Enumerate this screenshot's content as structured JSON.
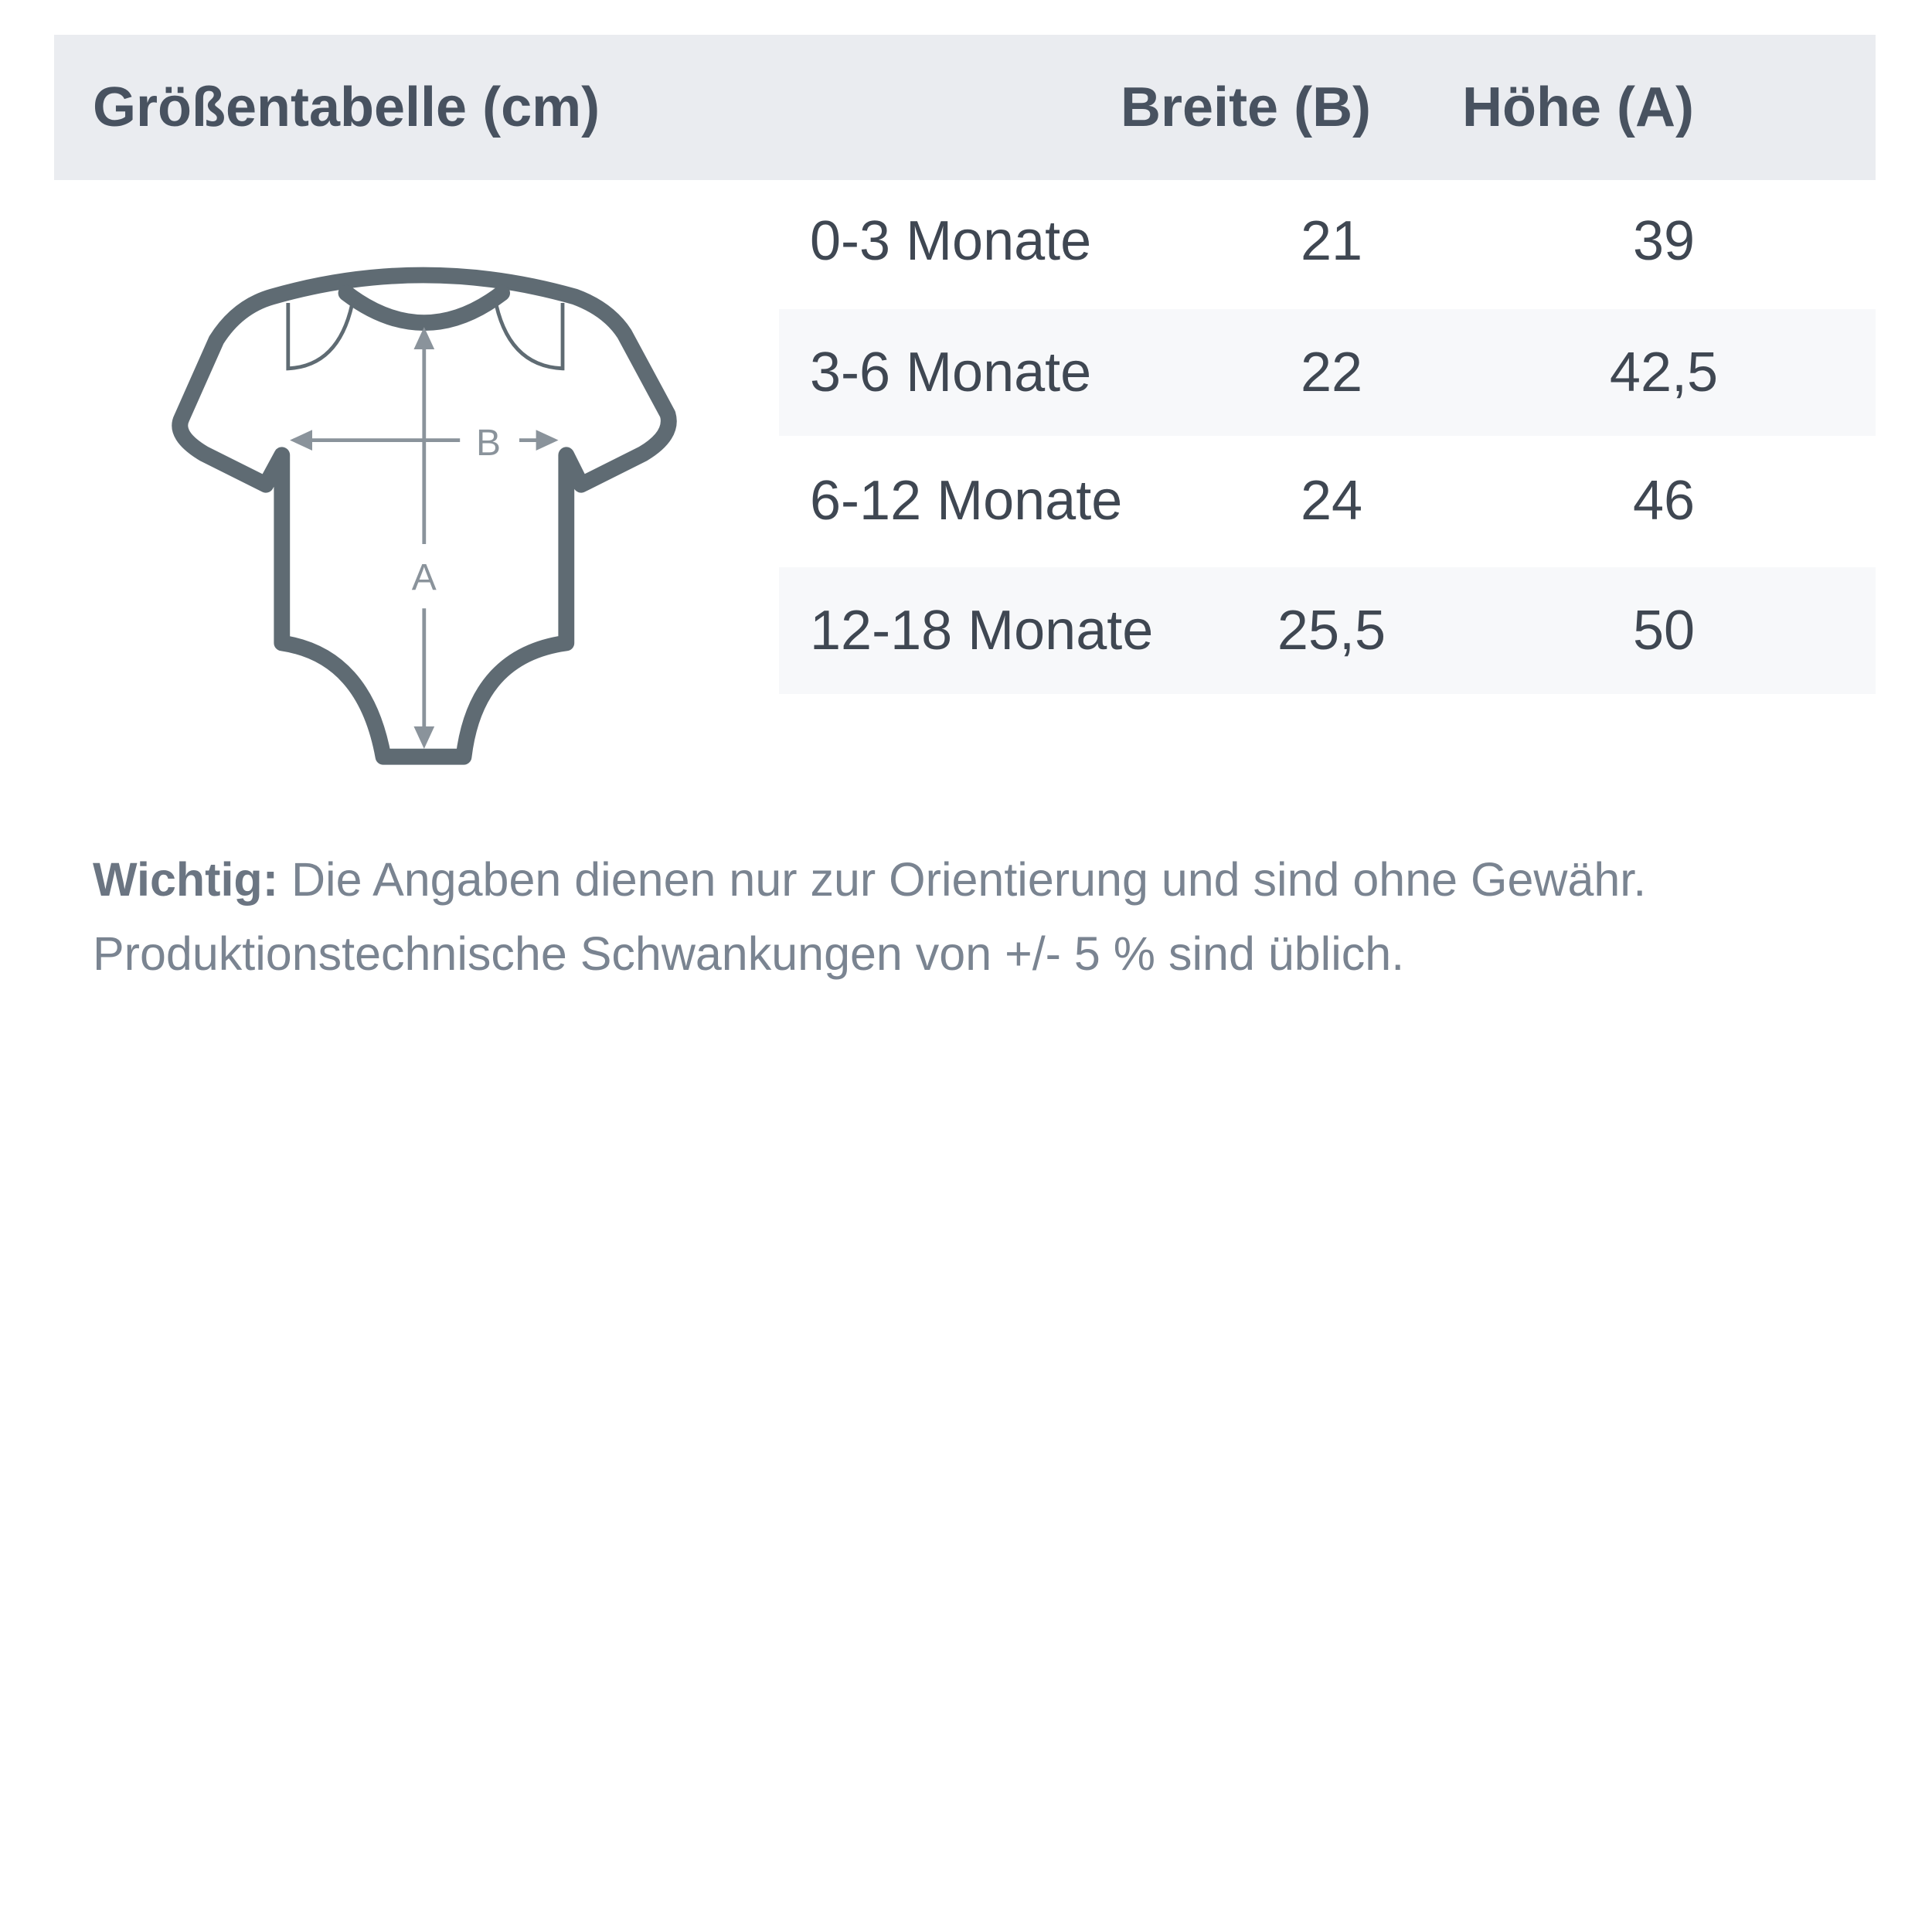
{
  "header": {
    "title": "Größentabelle (cm)",
    "col_width": "Breite (B)",
    "col_height": "Höhe (A)"
  },
  "rows": [
    {
      "size": "0-3 Monate",
      "width": "21",
      "height": "39"
    },
    {
      "size": "3-6 Monate",
      "width": "22",
      "height": "42,5"
    },
    {
      "size": "6-12 Monate",
      "width": "24",
      "height": "46"
    },
    {
      "size": "12-18 Monate",
      "width": "25,5",
      "height": "50"
    }
  ],
  "diagram": {
    "label_b": "B",
    "label_a": "A"
  },
  "note": {
    "bold": "Wichtig:",
    "text": " Die Angaben dienen nur zur Orientierung und sind ohne Gewähr. Produktionstechnische Schwankungen von +/- 5 % sind üblich."
  },
  "colors": {
    "header_bg": "#eaecf0",
    "stripe": "#f7f8fa",
    "outline": "#5f6b73",
    "arrows": "#8a939b"
  }
}
